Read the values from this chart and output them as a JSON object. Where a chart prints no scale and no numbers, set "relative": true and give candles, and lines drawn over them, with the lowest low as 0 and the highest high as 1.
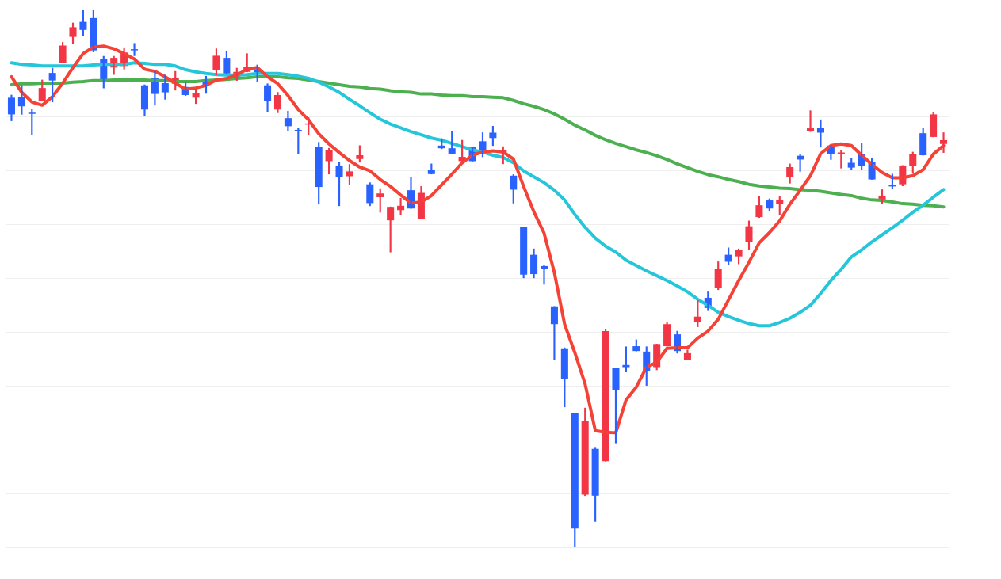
{
  "chart_data": {
    "type": "candlestick",
    "relative": true,
    "grid": "y",
    "marker": "none",
    "categories": [
      null,
      null,
      null,
      null,
      null,
      null,
      null,
      null,
      null,
      null,
      null,
      null,
      null,
      null,
      null,
      null,
      null,
      null,
      null,
      null,
      null,
      null,
      null,
      null,
      null,
      null,
      null,
      null,
      null,
      null,
      null,
      null,
      null,
      null,
      null,
      null,
      null,
      null,
      null,
      null,
      null,
      null,
      null,
      null,
      null,
      null,
      null,
      null,
      null,
      null,
      null,
      null,
      null,
      null,
      null,
      null,
      null,
      null,
      null,
      null,
      null,
      null,
      null,
      null,
      null,
      null,
      null,
      null,
      null,
      null,
      null,
      null,
      null,
      null,
      null,
      null,
      null,
      null,
      null,
      null,
      null,
      null,
      null,
      null,
      null,
      null,
      null,
      null,
      null,
      null,
      null,
      null
    ],
    "ohlc": [
      [
        0.836,
        0.841,
        0.793,
        0.805
      ],
      [
        0.837,
        0.859,
        0.805,
        0.82
      ],
      [
        0.808,
        0.814,
        0.767,
        0.806
      ],
      [
        0.83,
        0.869,
        0.83,
        0.854
      ],
      [
        0.882,
        0.891,
        0.828,
        0.868
      ],
      [
        0.901,
        0.939,
        0.901,
        0.933
      ],
      [
        0.949,
        0.975,
        0.937,
        0.967
      ],
      [
        0.977,
        1,
        0.951,
        0.962
      ],
      [
        0.984,
        0.999,
        0.921,
        0.924
      ],
      [
        0.908,
        0.913,
        0.854,
        0.866
      ],
      [
        0.892,
        0.913,
        0.879,
        0.91
      ],
      [
        0.895,
        0.929,
        0.889,
        0.92
      ],
      [
        0.926,
        0.937,
        0.914,
        0.924
      ],
      [
        0.859,
        0.86,
        0.803,
        0.814
      ],
      [
        0.873,
        0.885,
        0.822,
        0.843
      ],
      [
        0.863,
        0.878,
        0.833,
        0.846
      ],
      [
        0.862,
        0.885,
        0.85,
        0.872
      ],
      [
        0.856,
        0.865,
        0.84,
        0.841
      ],
      [
        0.836,
        0.852,
        0.825,
        0.844
      ],
      [
        0.87,
        0.876,
        0.844,
        0.86
      ],
      [
        0.888,
        0.927,
        0.878,
        0.914
      ],
      [
        0.91,
        0.923,
        0.881,
        0.881
      ],
      [
        0.873,
        0.891,
        0.868,
        0.884
      ],
      [
        0.884,
        0.918,
        0.884,
        0.894
      ],
      [
        0.889,
        0.897,
        0.865,
        0.881
      ],
      [
        0.859,
        0.862,
        0.809,
        0.83
      ],
      [
        0.814,
        0.846,
        0.808,
        0.841
      ],
      [
        0.798,
        0.811,
        0.774,
        0.783
      ],
      [
        0.776,
        0.779,
        0.732,
        0.774
      ],
      [
        0.786,
        0.799,
        0.767,
        0.787
      ],
      [
        0.744,
        0.753,
        0.638,
        0.67
      ],
      [
        0.718,
        0.742,
        0.694,
        0.738
      ],
      [
        0.71,
        0.716,
        0.635,
        0.689
      ],
      [
        0.69,
        0.712,
        0.674,
        0.699
      ],
      [
        0.722,
        0.747,
        0.716,
        0.729
      ],
      [
        0.675,
        0.678,
        0.635,
        0.64
      ],
      [
        0.651,
        0.667,
        0.623,
        0.658
      ],
      [
        0.608,
        0.633,
        0.549,
        0.633
      ],
      [
        0.627,
        0.649,
        0.619,
        0.635
      ],
      [
        0.664,
        0.688,
        0.63,
        0.63
      ],
      [
        0.611,
        0.671,
        0.611,
        0.659
      ],
      [
        0.702,
        0.713,
        0.694,
        0.694
      ],
      [
        0.747,
        0.76,
        0.741,
        0.742
      ],
      [
        0.742,
        0.773,
        0.732,
        0.732
      ],
      [
        0.718,
        0.757,
        0.718,
        0.726
      ],
      [
        0.744,
        0.744,
        0.718,
        0.718
      ],
      [
        0.755,
        0.771,
        0.726,
        0.735
      ],
      [
        0.771,
        0.783,
        0.747,
        0.761
      ],
      [
        0.734,
        0.745,
        0.713,
        0.739
      ],
      [
        0.691,
        0.693,
        0.64,
        0.665
      ],
      [
        0.595,
        0.595,
        0.501,
        0.507
      ],
      [
        0.544,
        0.555,
        0.501,
        0.508
      ],
      [
        0.523,
        0.525,
        0.489,
        0.518
      ],
      [
        0.448,
        0.448,
        0.349,
        0.415
      ],
      [
        0.37,
        0.371,
        0.261,
        0.313
      ],
      [
        0.249,
        0.249,
        0,
        0.035
      ],
      [
        0.098,
        0.259,
        0.096,
        0.234
      ],
      [
        0.183,
        0.186,
        0.048,
        0.096
      ],
      [
        0.16,
        0.406,
        0.16,
        0.402
      ],
      [
        0.333,
        0.333,
        0.194,
        0.293
      ],
      [
        0.339,
        0.373,
        0.326,
        0.335
      ],
      [
        0.374,
        0.386,
        0.365,
        0.365
      ],
      [
        0.364,
        0.373,
        0.301,
        0.328
      ],
      [
        0.335,
        0.378,
        0.33,
        0.378
      ],
      [
        0.374,
        0.418,
        0.374,
        0.415
      ],
      [
        0.396,
        0.402,
        0.361,
        0.365
      ],
      [
        0.348,
        0.367,
        0.348,
        0.361
      ],
      [
        0.419,
        0.459,
        0.41,
        0.429
      ],
      [
        0.464,
        0.475,
        0.44,
        0.445
      ],
      [
        0.483,
        0.531,
        0.479,
        0.518
      ],
      [
        0.544,
        0.557,
        0.525,
        0.531
      ],
      [
        0.541,
        0.555,
        0.527,
        0.553
      ],
      [
        0.568,
        0.607,
        0.553,
        0.597
      ],
      [
        0.614,
        0.652,
        0.613,
        0.636
      ],
      [
        0.645,
        0.648,
        0.626,
        0.63
      ],
      [
        0.639,
        0.652,
        0.619,
        0.646
      ],
      [
        0.689,
        0.713,
        0.677,
        0.707
      ],
      [
        0.728,
        0.731,
        0.699,
        0.721
      ],
      [
        0.774,
        0.812,
        0.773,
        0.779
      ],
      [
        0.78,
        0.795,
        0.744,
        0.771
      ],
      [
        0.747,
        0.747,
        0.721,
        0.732
      ],
      [
        0.732,
        0.738,
        0.705,
        0.734
      ],
      [
        0.715,
        0.723,
        0.702,
        0.706
      ],
      [
        0.731,
        0.751,
        0.703,
        0.709
      ],
      [
        0.716,
        0.723,
        0.684,
        0.684
      ],
      [
        0.646,
        0.665,
        0.639,
        0.654
      ],
      [
        0.672,
        0.694,
        0.667,
        0.671
      ],
      [
        0.675,
        0.71,
        0.672,
        0.71
      ],
      [
        0.709,
        0.735,
        0.697,
        0.731
      ],
      [
        0.77,
        0.779,
        0.729,
        0.729
      ],
      [
        0.763,
        0.808,
        0.763,
        0.805
      ],
      [
        0.75,
        0.771,
        0.734,
        0.757
      ]
    ],
    "colors": [
      "#2962ff",
      "#2962ff",
      "#2962ff",
      "#f23645",
      "#2962ff",
      "#f23645",
      "#f23645",
      "#2962ff",
      "#2962ff",
      "#2962ff",
      "#f23645",
      "#f23645",
      "#2962ff",
      "#2962ff",
      "#2962ff",
      "#2962ff",
      "#f23645",
      "#2962ff",
      "#f23645",
      "#2962ff",
      "#f23645",
      "#2962ff",
      "#f23645",
      "#f23645",
      "#2962ff",
      "#2962ff",
      "#f23645",
      "#2962ff",
      "#2962ff",
      "#f23645",
      "#2962ff",
      "#f23645",
      "#2962ff",
      "#f23645",
      "#f23645",
      "#2962ff",
      "#f23645",
      "#f23645",
      "#f23645",
      "#2962ff",
      "#f23645",
      "#2962ff",
      "#2962ff",
      "#2962ff",
      "#f23645",
      "#2962ff",
      "#2962ff",
      "#2962ff",
      "#f23645",
      "#2962ff",
      "#2962ff",
      "#2962ff",
      "#2962ff",
      "#2962ff",
      "#2962ff",
      "#2962ff",
      "#f23645",
      "#2962ff",
      "#f23645",
      "#2962ff",
      "#2962ff",
      "#2962ff",
      "#2962ff",
      "#f23645",
      "#f23645",
      "#2962ff",
      "#f23645",
      "#f23645",
      "#2962ff",
      "#f23645",
      "#2962ff",
      "#f23645",
      "#f23645",
      "#f23645",
      "#2962ff",
      "#f23645",
      "#f23645",
      "#2962ff",
      "#f23645",
      "#2962ff",
      "#2962ff",
      "#f23645",
      "#2962ff",
      "#2962ff",
      "#2962ff",
      "#f23645",
      "#2962ff",
      "#f23645",
      "#f23645",
      "#2962ff",
      "#f23645",
      "#f23645"
    ],
    "series": [
      {
        "type": "line",
        "color": "#f44336",
        "values": [
          0.875,
          0.846,
          0.828,
          0.822,
          0.838,
          0.863,
          0.892,
          0.918,
          0.93,
          0.932,
          0.927,
          0.918,
          0.908,
          0.889,
          0.885,
          0.875,
          0.863,
          0.852,
          0.854,
          0.859,
          0.869,
          0.872,
          0.878,
          0.889,
          0.892,
          0.875,
          0.862,
          0.84,
          0.814,
          0.795,
          0.769,
          0.75,
          0.734,
          0.719,
          0.707,
          0.7,
          0.684,
          0.671,
          0.655,
          0.64,
          0.642,
          0.654,
          0.674,
          0.694,
          0.715,
          0.729,
          0.735,
          0.737,
          0.735,
          0.722,
          0.671,
          0.624,
          0.584,
          0.511,
          0.415,
          0.362,
          0.304,
          0.217,
          0.214,
          0.213,
          0.274,
          0.298,
          0.335,
          0.344,
          0.37,
          0.371,
          0.371,
          0.389,
          0.402,
          0.424,
          0.46,
          0.496,
          0.53,
          0.566,
          0.585,
          0.607,
          0.638,
          0.664,
          0.691,
          0.732,
          0.747,
          0.75,
          0.747,
          0.729,
          0.712,
          0.697,
          0.687,
          0.687,
          0.691,
          0.702,
          0.731,
          0.747
        ]
      },
      {
        "type": "line",
        "color": "#26c6da",
        "values": [
          0.901,
          0.898,
          0.897,
          0.895,
          0.895,
          0.895,
          0.895,
          0.895,
          0.897,
          0.898,
          0.898,
          0.898,
          0.901,
          0.9,
          0.898,
          0.898,
          0.895,
          0.888,
          0.884,
          0.881,
          0.879,
          0.878,
          0.878,
          0.879,
          0.881,
          0.881,
          0.881,
          0.879,
          0.876,
          0.872,
          0.865,
          0.856,
          0.846,
          0.833,
          0.821,
          0.808,
          0.796,
          0.787,
          0.78,
          0.773,
          0.767,
          0.761,
          0.757,
          0.751,
          0.745,
          0.739,
          0.735,
          0.729,
          0.725,
          0.715,
          0.7,
          0.689,
          0.678,
          0.664,
          0.646,
          0.619,
          0.595,
          0.575,
          0.56,
          0.549,
          0.534,
          0.524,
          0.514,
          0.505,
          0.496,
          0.486,
          0.475,
          0.461,
          0.45,
          0.437,
          0.429,
          0.422,
          0.416,
          0.412,
          0.412,
          0.418,
          0.426,
          0.437,
          0.45,
          0.472,
          0.496,
          0.517,
          0.54,
          0.553,
          0.568,
          0.581,
          0.594,
          0.608,
          0.623,
          0.636,
          0.651,
          0.665
        ]
      },
      {
        "type": "line",
        "color": "#4caf50",
        "values": [
          0.86,
          0.862,
          0.862,
          0.863,
          0.863,
          0.863,
          0.865,
          0.866,
          0.868,
          0.868,
          0.869,
          0.869,
          0.869,
          0.869,
          0.868,
          0.868,
          0.866,
          0.866,
          0.866,
          0.868,
          0.869,
          0.87,
          0.872,
          0.873,
          0.875,
          0.875,
          0.875,
          0.873,
          0.872,
          0.869,
          0.866,
          0.863,
          0.86,
          0.857,
          0.856,
          0.853,
          0.852,
          0.849,
          0.847,
          0.846,
          0.843,
          0.843,
          0.841,
          0.84,
          0.84,
          0.838,
          0.838,
          0.837,
          0.836,
          0.831,
          0.825,
          0.82,
          0.814,
          0.806,
          0.796,
          0.785,
          0.776,
          0.766,
          0.758,
          0.751,
          0.745,
          0.739,
          0.734,
          0.728,
          0.721,
          0.713,
          0.706,
          0.699,
          0.693,
          0.689,
          0.684,
          0.68,
          0.675,
          0.672,
          0.67,
          0.668,
          0.667,
          0.665,
          0.664,
          0.662,
          0.659,
          0.656,
          0.654,
          0.649,
          0.646,
          0.645,
          0.642,
          0.639,
          0.638,
          0.636,
          0.635,
          0.633
        ]
      }
    ]
  }
}
